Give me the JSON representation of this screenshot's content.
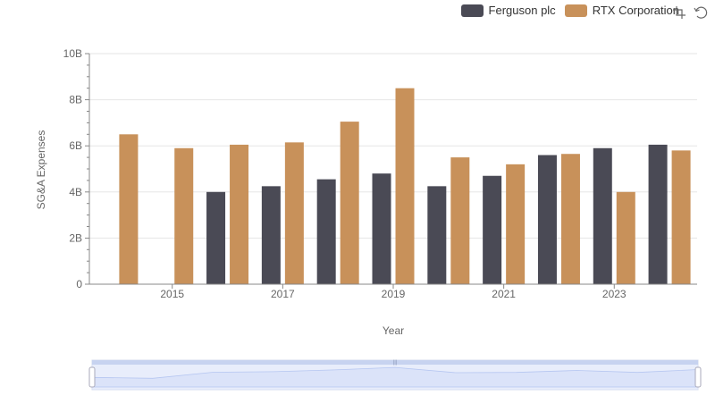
{
  "chart_data": {
    "type": "bar",
    "title": "",
    "xlabel": "Year",
    "ylabel": "SG&A Expenses",
    "categories": [
      "2014",
      "2015",
      "2016",
      "2017",
      "2018",
      "2019",
      "2020",
      "2021",
      "2022",
      "2023",
      "2024"
    ],
    "x_tick_labels": [
      "2015",
      "2017",
      "2019",
      "2021",
      "2023"
    ],
    "y_tick_labels": [
      "0",
      "2B",
      "4B",
      "6B",
      "8B",
      "10B"
    ],
    "ylim": [
      0,
      10
    ],
    "y_unit": "B",
    "grid": true,
    "legend_position": "top-right",
    "series": [
      {
        "name": "Ferguson plc",
        "color": "#4a4a55",
        "values": [
          null,
          null,
          4.0,
          4.25,
          4.55,
          4.8,
          4.25,
          4.7,
          5.6,
          5.9,
          6.05
        ]
      },
      {
        "name": "RTX Corporation",
        "color": "#c8915a",
        "values": [
          6.5,
          5.9,
          6.05,
          6.15,
          7.05,
          8.5,
          5.5,
          5.2,
          5.65,
          4.0,
          5.8
        ]
      }
    ]
  },
  "toolbox": {
    "zoom_icon": "zoom-icon",
    "restore_icon": "restore-icon"
  },
  "datazoom": {
    "handle_label": "|||"
  }
}
